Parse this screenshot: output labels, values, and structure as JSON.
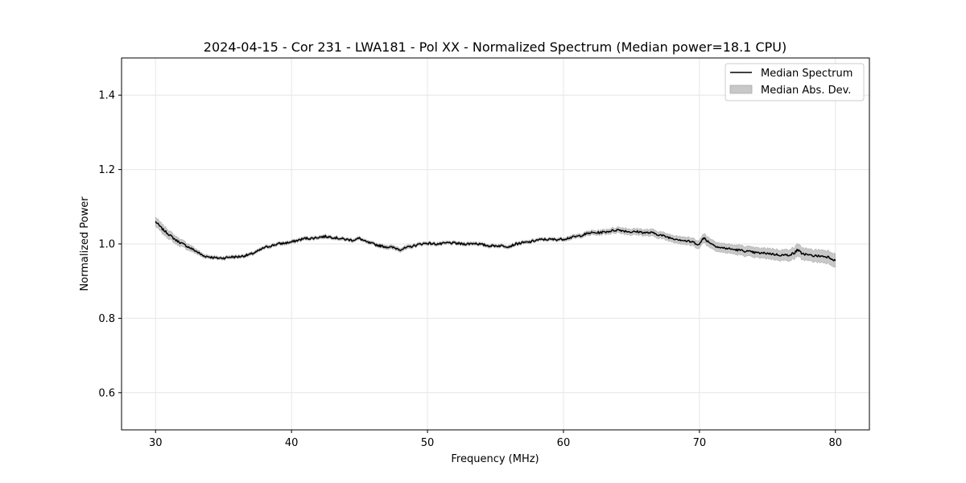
{
  "chart_data": {
    "type": "line",
    "title": "2024-04-15 - Cor 231 - LWA181 - Pol XX - Normalized Spectrum (Median power=18.1 CPU)",
    "xlabel": "Frequency (MHz)",
    "ylabel": "Normalized Power",
    "xlim": [
      27.5,
      82.5
    ],
    "ylim": [
      0.5,
      1.5
    ],
    "xticks": [
      30,
      40,
      50,
      60,
      70,
      80
    ],
    "yticks": [
      0.6,
      0.8,
      1.0,
      1.2,
      1.4
    ],
    "xtick_labels": [
      "30",
      "40",
      "50",
      "60",
      "70",
      "80"
    ],
    "ytick_labels": [
      "0.6",
      "0.8",
      "1.0",
      "1.2",
      "1.4"
    ],
    "grid": true,
    "legend_position": "top-right",
    "series": [
      {
        "name": "Median Spectrum",
        "color": "#000000",
        "x": [
          30,
          30.5,
          31,
          31.5,
          32,
          32.5,
          33,
          33.5,
          34,
          34.5,
          35,
          35.5,
          36,
          36.5,
          37,
          37.5,
          38,
          38.5,
          39,
          39.5,
          40,
          40.5,
          41,
          41.5,
          42,
          42.5,
          43,
          43.5,
          44,
          44.5,
          45,
          45.5,
          46,
          46.5,
          47,
          47.5,
          48,
          48.5,
          49,
          49.5,
          50,
          50.5,
          51,
          51.5,
          52,
          52.5,
          53,
          53.5,
          54,
          54.5,
          55,
          55.5,
          56,
          56.5,
          57,
          57.5,
          58,
          58.5,
          59,
          59.5,
          60,
          60.5,
          61,
          61.5,
          62,
          62.5,
          63,
          63.5,
          64,
          64.5,
          65,
          65.5,
          66,
          66.5,
          67,
          67.5,
          68,
          68.5,
          69,
          69.5,
          70,
          70.3,
          70.5,
          71,
          71.5,
          72,
          72.5,
          73,
          73.5,
          74,
          74.5,
          75,
          75.5,
          76,
          76.5,
          77,
          77.2,
          77.5,
          78,
          78.5,
          79,
          79.5,
          80
        ],
        "y": [
          1.06,
          1.04,
          1.025,
          1.01,
          1.0,
          0.99,
          0.98,
          0.968,
          0.965,
          0.962,
          0.962,
          0.965,
          0.965,
          0.968,
          0.972,
          0.98,
          0.99,
          0.995,
          1.0,
          1.002,
          1.005,
          1.01,
          1.015,
          1.015,
          1.018,
          1.02,
          1.018,
          1.015,
          1.012,
          1.01,
          1.015,
          1.005,
          1.0,
          0.995,
          0.992,
          0.99,
          0.985,
          0.99,
          0.995,
          1.0,
          1.002,
          1.0,
          1.0,
          1.003,
          1.002,
          1.0,
          1.0,
          1.002,
          0.998,
          0.995,
          0.995,
          0.995,
          0.993,
          1.0,
          1.003,
          1.005,
          1.01,
          1.012,
          1.012,
          1.012,
          1.013,
          1.017,
          1.02,
          1.025,
          1.03,
          1.03,
          1.032,
          1.035,
          1.038,
          1.035,
          1.032,
          1.033,
          1.03,
          1.03,
          1.025,
          1.02,
          1.015,
          1.012,
          1.008,
          1.005,
          0.998,
          1.018,
          1.01,
          0.998,
          0.99,
          0.988,
          0.985,
          0.983,
          0.98,
          0.977,
          0.975,
          0.975,
          0.972,
          0.97,
          0.97,
          0.975,
          0.985,
          0.975,
          0.97,
          0.968,
          0.967,
          0.965,
          0.955
        ],
        "mad": [
          0.012,
          0.012,
          0.011,
          0.01,
          0.009,
          0.008,
          0.006,
          0.005,
          0.004,
          0.004,
          0.004,
          0.004,
          0.004,
          0.004,
          0.004,
          0.004,
          0.004,
          0.004,
          0.004,
          0.004,
          0.004,
          0.004,
          0.004,
          0.004,
          0.004,
          0.004,
          0.004,
          0.004,
          0.004,
          0.004,
          0.004,
          0.004,
          0.004,
          0.004,
          0.005,
          0.005,
          0.005,
          0.005,
          0.004,
          0.004,
          0.004,
          0.004,
          0.004,
          0.004,
          0.004,
          0.004,
          0.004,
          0.004,
          0.004,
          0.004,
          0.004,
          0.004,
          0.004,
          0.004,
          0.004,
          0.004,
          0.004,
          0.004,
          0.004,
          0.004,
          0.004,
          0.005,
          0.005,
          0.005,
          0.006,
          0.006,
          0.006,
          0.007,
          0.007,
          0.008,
          0.008,
          0.008,
          0.008,
          0.009,
          0.009,
          0.009,
          0.009,
          0.01,
          0.01,
          0.01,
          0.011,
          0.011,
          0.012,
          0.012,
          0.012,
          0.012,
          0.012,
          0.013,
          0.013,
          0.013,
          0.013,
          0.014,
          0.014,
          0.014,
          0.015,
          0.015,
          0.016,
          0.016,
          0.016,
          0.016,
          0.017,
          0.017,
          0.018
        ]
      }
    ],
    "legend": [
      {
        "label": "Median Spectrum",
        "kind": "line",
        "color": "#000000"
      },
      {
        "label": "Median Abs. Dev.",
        "kind": "patch",
        "color": "#c8c8c8"
      }
    ]
  }
}
